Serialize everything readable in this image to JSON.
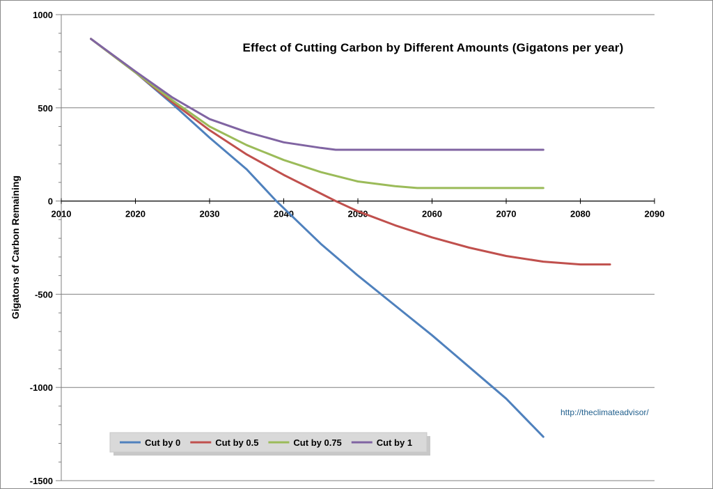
{
  "chart_data": {
    "type": "line",
    "title": "Effect of Cutting Carbon by Different Amounts (Gigatons per year)",
    "xlabel": "",
    "ylabel": "Gigatons of Carbon Remaining",
    "xlim": [
      2010,
      2090
    ],
    "ylim": [
      -1500,
      1000
    ],
    "x_ticks": [
      2010,
      2020,
      2030,
      2040,
      2050,
      2060,
      2070,
      2080,
      2090
    ],
    "y_ticks": [
      1000,
      500,
      0,
      -500,
      -1000,
      -1500
    ],
    "grid": "horizontal",
    "legend_position": "bottom-left",
    "credit": "http://theclimateadvisor/",
    "series": [
      {
        "name": "Cut by 0",
        "color": "#4f81bd",
        "points": [
          [
            2014,
            870
          ],
          [
            2020,
            690
          ],
          [
            2025,
            520
          ],
          [
            2030,
            340
          ],
          [
            2035,
            170
          ],
          [
            2039,
            0
          ],
          [
            2045,
            -230
          ],
          [
            2050,
            -400
          ],
          [
            2055,
            -560
          ],
          [
            2060,
            -720
          ],
          [
            2065,
            -890
          ],
          [
            2070,
            -1060
          ],
          [
            2075,
            -1265
          ]
        ]
      },
      {
        "name": "Cut by 0.5",
        "color": "#c0504d",
        "points": [
          [
            2014,
            870
          ],
          [
            2020,
            690
          ],
          [
            2025,
            530
          ],
          [
            2030,
            380
          ],
          [
            2035,
            250
          ],
          [
            2040,
            140
          ],
          [
            2045,
            40
          ],
          [
            2047,
            0
          ],
          [
            2050,
            -55
          ],
          [
            2055,
            -130
          ],
          [
            2060,
            -195
          ],
          [
            2065,
            -250
          ],
          [
            2070,
            -295
          ],
          [
            2075,
            -325
          ],
          [
            2080,
            -340
          ],
          [
            2084,
            -340
          ]
        ]
      },
      {
        "name": "Cut by 0.75",
        "color": "#9bbb59",
        "points": [
          [
            2014,
            870
          ],
          [
            2020,
            690
          ],
          [
            2025,
            540
          ],
          [
            2030,
            400
          ],
          [
            2035,
            300
          ],
          [
            2040,
            220
          ],
          [
            2045,
            155
          ],
          [
            2050,
            105
          ],
          [
            2055,
            80
          ],
          [
            2058,
            70
          ],
          [
            2065,
            70
          ],
          [
            2075,
            70
          ]
        ]
      },
      {
        "name": "Cut by 1",
        "color": "#8064a2",
        "points": [
          [
            2014,
            870
          ],
          [
            2020,
            695
          ],
          [
            2025,
            555
          ],
          [
            2030,
            440
          ],
          [
            2035,
            370
          ],
          [
            2040,
            315
          ],
          [
            2045,
            285
          ],
          [
            2047,
            275
          ],
          [
            2055,
            275
          ],
          [
            2065,
            275
          ],
          [
            2075,
            275
          ]
        ]
      }
    ]
  }
}
